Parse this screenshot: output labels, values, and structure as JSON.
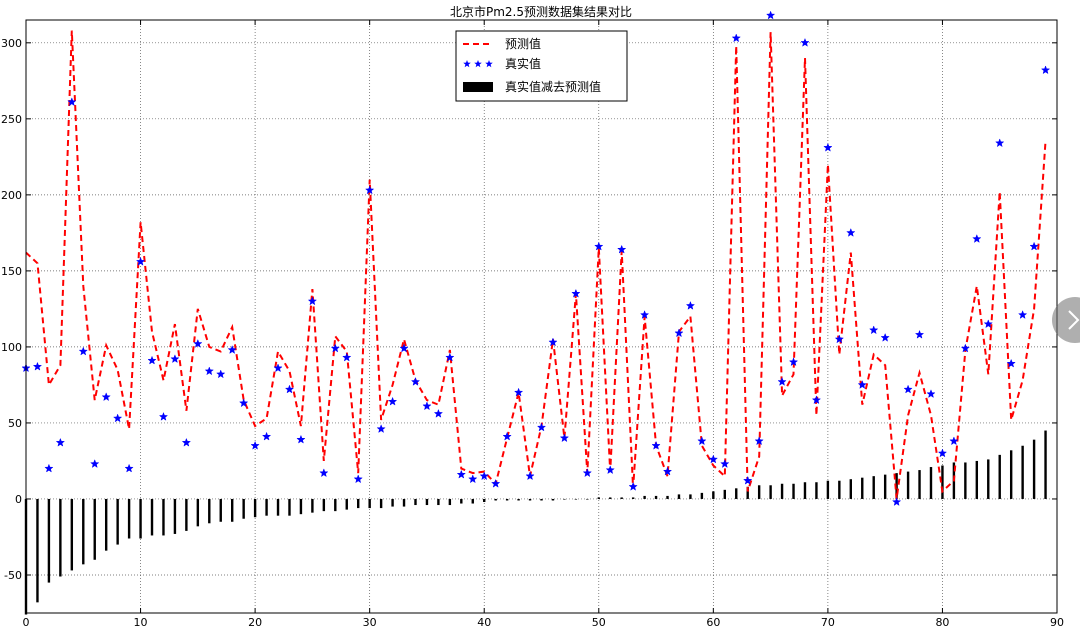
{
  "chart_data": {
    "type": "line",
    "title": "北京市Pm2.5预测数据集结果对比",
    "xlim": [
      0,
      90
    ],
    "ylim": [
      -75,
      315
    ],
    "xticks": [
      0,
      10,
      20,
      30,
      40,
      50,
      60,
      70,
      80,
      90
    ],
    "yticks": [
      -50,
      0,
      50,
      100,
      150,
      200,
      250,
      300
    ],
    "grid": true,
    "legend_position": "top-center",
    "x": [
      0,
      1,
      2,
      3,
      4,
      5,
      6,
      7,
      8,
      9,
      10,
      11,
      12,
      13,
      14,
      15,
      16,
      17,
      18,
      19,
      20,
      21,
      22,
      23,
      24,
      25,
      26,
      27,
      28,
      29,
      30,
      31,
      32,
      33,
      34,
      35,
      36,
      37,
      38,
      39,
      40,
      41,
      42,
      43,
      44,
      45,
      46,
      47,
      48,
      49,
      50,
      51,
      52,
      53,
      54,
      55,
      56,
      57,
      58,
      59,
      60,
      61,
      62,
      63,
      64,
      65,
      66,
      67,
      68,
      69,
      70,
      71,
      72,
      73,
      74,
      75,
      76,
      77,
      78,
      79,
      80,
      81,
      82,
      83,
      84,
      85,
      86,
      87,
      88,
      89
    ],
    "series": [
      {
        "name": "预测值",
        "kind": "line",
        "style": "dashed",
        "color": "#ff0000",
        "values": [
          162,
          155,
          75,
          88,
          308,
          140,
          65,
          101,
          85,
          46,
          182,
          110,
          78,
          115,
          58,
          125,
          100,
          97,
          113,
          65,
          48,
          53,
          97,
          84,
          48,
          138,
          25,
          107,
          97,
          17,
          210,
          52,
          75,
          105,
          78,
          65,
          62,
          98,
          20,
          17,
          18,
          10,
          40,
          70,
          15,
          48,
          105,
          40,
          135,
          17,
          165,
          18,
          163,
          7,
          120,
          35,
          15,
          110,
          120,
          35,
          22,
          15,
          298,
          5,
          28,
          307,
          68,
          82,
          290,
          55,
          220,
          95,
          162,
          62,
          95,
          88,
          0,
          55,
          83,
          55,
          5,
          12,
          98,
          140,
          82,
          202,
          52,
          78,
          125,
          235
        ]
      },
      {
        "name": "真实值",
        "kind": "scatter",
        "marker": "star",
        "color": "#0000ff",
        "values": [
          86,
          87,
          20,
          37,
          261,
          97,
          23,
          67,
          53,
          20,
          156,
          91,
          54,
          92,
          37,
          102,
          84,
          82,
          98,
          63,
          35,
          41,
          86,
          72,
          39,
          130,
          17,
          99,
          93,
          13,
          203,
          46,
          64,
          99,
          77,
          61,
          56,
          93,
          16,
          13,
          15,
          10,
          41,
          70,
          15,
          47,
          103,
          40,
          135,
          17,
          166,
          19,
          164,
          8,
          121,
          35,
          18,
          109,
          127,
          38,
          26,
          23,
          303,
          12,
          38,
          318,
          77,
          90,
          300,
          65,
          231,
          105,
          175,
          75,
          111,
          106,
          -2,
          72,
          108,
          69,
          30,
          38,
          99,
          171,
          115,
          234,
          89,
          121,
          166,
          282
        ]
      },
      {
        "name": "真实值减去预测值",
        "kind": "bar",
        "color": "#000000",
        "values": [
          -76,
          -68,
          -55,
          -51,
          -47,
          -43,
          -40,
          -34,
          -30,
          -26,
          -26,
          -24,
          -24,
          -23,
          -21,
          -18,
          -16,
          -15,
          -15,
          -13,
          -12,
          -11,
          -11,
          -11,
          -10,
          -9,
          -8,
          -8,
          -7,
          -6,
          -6,
          -6,
          -5,
          -5,
          -4,
          -4,
          -4,
          -4,
          -3,
          -3,
          -2,
          -1,
          -1,
          -1,
          -1,
          -1,
          -1,
          0,
          0,
          0,
          1,
          1,
          1,
          1,
          2,
          2,
          2,
          3,
          3,
          4,
          5,
          6,
          7,
          8,
          9,
          9,
          10,
          10,
          11,
          11,
          12,
          12,
          13,
          14,
          15,
          16,
          17,
          18,
          19,
          21,
          22,
          24,
          24,
          25,
          26,
          29,
          32,
          35,
          39,
          45
        ]
      }
    ]
  }
}
